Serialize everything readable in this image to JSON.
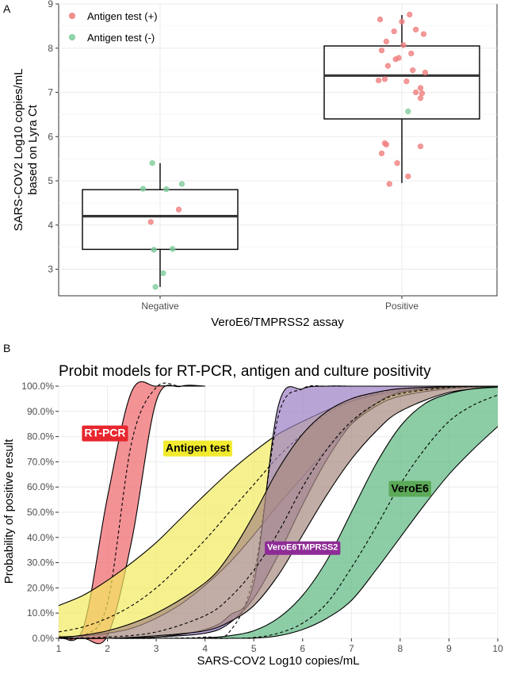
{
  "panel_labels": [
    "A",
    "B"
  ],
  "chart_data": [
    {
      "type": "box",
      "panel": "A",
      "xlabel": "VeroE6/TMPRSS2 assay",
      "ylabel_lines": [
        "SARS-COV2 Log10 copies/mL",
        "based on Lyra Ct"
      ],
      "categories": [
        "Negative",
        "Positive"
      ],
      "ylim": [
        2.4,
        9
      ],
      "yticks": [
        3,
        4,
        5,
        6,
        7,
        8,
        9
      ],
      "grid": true,
      "legend_position": "top-left",
      "legend": [
        {
          "label": "Antigen test (+)",
          "color": "#f08080"
        },
        {
          "label": "Antigen test (-)",
          "color": "#7fcc9c"
        }
      ],
      "boxes": [
        {
          "category": "Negative",
          "min": 2.6,
          "q1": 3.45,
          "median": 4.2,
          "q3": 4.8,
          "max": 5.4
        },
        {
          "category": "Positive",
          "min": 4.95,
          "q1": 6.4,
          "median": 7.38,
          "q3": 8.05,
          "max": 8.75
        }
      ],
      "points": [
        {
          "category": "Negative",
          "antigen": "-",
          "y": 5.4,
          "jitter": -0.05
        },
        {
          "category": "Negative",
          "antigen": "-",
          "y": 4.93,
          "jitter": 0.14
        },
        {
          "category": "Negative",
          "antigen": "-",
          "y": 4.82,
          "jitter": -0.11
        },
        {
          "category": "Negative",
          "antigen": "-",
          "y": 4.81,
          "jitter": 0.04
        },
        {
          "category": "Negative",
          "antigen": "+",
          "y": 4.35,
          "jitter": 0.12
        },
        {
          "category": "Negative",
          "antigen": "+",
          "y": 4.07,
          "jitter": -0.06
        },
        {
          "category": "Negative",
          "antigen": "-",
          "y": 3.46,
          "jitter": 0.08
        },
        {
          "category": "Negative",
          "antigen": "-",
          "y": 3.44,
          "jitter": -0.04
        },
        {
          "category": "Negative",
          "antigen": "-",
          "y": 2.91,
          "jitter": 0.02
        },
        {
          "category": "Negative",
          "antigen": "-",
          "y": 2.6,
          "jitter": -0.03
        },
        {
          "category": "Positive",
          "antigen": "+",
          "y": 8.76,
          "jitter": 0.05
        },
        {
          "category": "Positive",
          "antigen": "+",
          "y": 8.65,
          "jitter": -0.14
        },
        {
          "category": "Positive",
          "antigen": "+",
          "y": 8.6,
          "jitter": 0.0
        },
        {
          "category": "Positive",
          "antigen": "+",
          "y": 8.42,
          "jitter": 0.09
        },
        {
          "category": "Positive",
          "antigen": "+",
          "y": 8.38,
          "jitter": -0.05
        },
        {
          "category": "Positive",
          "antigen": "+",
          "y": 8.32,
          "jitter": 0.14
        },
        {
          "category": "Positive",
          "antigen": "+",
          "y": 8.15,
          "jitter": -0.1
        },
        {
          "category": "Positive",
          "antigen": "+",
          "y": 8.07,
          "jitter": 0.01
        },
        {
          "category": "Positive",
          "antigen": "+",
          "y": 7.95,
          "jitter": -0.13
        },
        {
          "category": "Positive",
          "antigen": "+",
          "y": 7.88,
          "jitter": 0.06
        },
        {
          "category": "Positive",
          "antigen": "+",
          "y": 7.78,
          "jitter": -0.02
        },
        {
          "category": "Positive",
          "antigen": "+",
          "y": 7.75,
          "jitter": -0.04
        },
        {
          "category": "Positive",
          "antigen": "+",
          "y": 7.6,
          "jitter": -0.09
        },
        {
          "category": "Positive",
          "antigen": "+",
          "y": 7.5,
          "jitter": 0.07
        },
        {
          "category": "Positive",
          "antigen": "+",
          "y": 7.45,
          "jitter": 0.15
        },
        {
          "category": "Positive",
          "antigen": "+",
          "y": 7.3,
          "jitter": -0.11
        },
        {
          "category": "Positive",
          "antigen": "+",
          "y": 7.25,
          "jitter": 0.03
        },
        {
          "category": "Positive",
          "antigen": "+",
          "y": 7.27,
          "jitter": -0.15
        },
        {
          "category": "Positive",
          "antigen": "+",
          "y": 7.1,
          "jitter": 0.12
        },
        {
          "category": "Positive",
          "antigen": "+",
          "y": 7.0,
          "jitter": 0.09
        },
        {
          "category": "Positive",
          "antigen": "+",
          "y": 6.98,
          "jitter": 0.13
        },
        {
          "category": "Positive",
          "antigen": "+",
          "y": 6.87,
          "jitter": 0.12
        },
        {
          "category": "Positive",
          "antigen": "-",
          "y": 6.57,
          "jitter": 0.04
        },
        {
          "category": "Positive",
          "antigen": "+",
          "y": 5.85,
          "jitter": -0.11
        },
        {
          "category": "Positive",
          "antigen": "+",
          "y": 5.82,
          "jitter": -0.1
        },
        {
          "category": "Positive",
          "antigen": "+",
          "y": 5.78,
          "jitter": 0.12
        },
        {
          "category": "Positive",
          "antigen": "+",
          "y": 5.62,
          "jitter": -0.13
        },
        {
          "category": "Positive",
          "antigen": "+",
          "y": 5.4,
          "jitter": -0.03
        },
        {
          "category": "Positive",
          "antigen": "+",
          "y": 5.1,
          "jitter": 0.04
        },
        {
          "category": "Positive",
          "antigen": "+",
          "y": 4.93,
          "jitter": -0.08
        }
      ]
    },
    {
      "type": "line",
      "panel": "B",
      "title": "Probit models for RT-PCR, antigen and culture positivity",
      "xlabel": "SARS-COV2 Log10 copies/mL",
      "ylabel": "Probability of positive result",
      "xlim": [
        1,
        10
      ],
      "ylim": [
        0,
        100
      ],
      "xticks": [
        "1",
        "2",
        "3",
        "4",
        "5",
        "6",
        "7",
        "8",
        "9",
        "10"
      ],
      "yticks": [
        "0.0%",
        "10.0%",
        "20.0%",
        "30.0%",
        "40.0%",
        "50.0%",
        "60.0%",
        "70.0%",
        "80.0%",
        "90.0%",
        "100.0%"
      ],
      "grid": true,
      "series": [
        {
          "name": "RT-PCR",
          "fill": "#ee6468",
          "label_bg": "#e8262e",
          "label_fg": "#ffffff",
          "label_at": [
            1.95,
            80
          ],
          "x": [
            1.0,
            1.5,
            2.0,
            2.5,
            3.0,
            3.5,
            4.0
          ],
          "lower": [
            0.0,
            0.0,
            1.0,
            39.0,
            94.0,
            99.9,
            100.0
          ],
          "mid": [
            0.0,
            1.0,
            14.0,
            78.0,
            99.5,
            100.0,
            100.0
          ],
          "upper": [
            1.0,
            4.0,
            56.0,
            98.0,
            100.0,
            100.0,
            100.0
          ]
        },
        {
          "name": "Antigen test",
          "fill": "#f2ea60",
          "label_bg": "#f2ea2e",
          "label_fg": "#000000",
          "label_at": [
            3.85,
            74
          ],
          "x": [
            1.0,
            1.5,
            2.0,
            2.5,
            3.0,
            3.5,
            4.0,
            4.5,
            5.0,
            5.5,
            6.0,
            6.5,
            7.0,
            7.5,
            8.0,
            9.0,
            10.0
          ],
          "lower": [
            0.5,
            1.0,
            2.0,
            4.0,
            8.0,
            13.5,
            21.0,
            30.0,
            41.0,
            53.0,
            64.0,
            75.0,
            85.0,
            92.0,
            96.0,
            99.0,
            99.8
          ],
          "mid": [
            2.5,
            4.5,
            8.0,
            13.0,
            20.0,
            29.0,
            39.0,
            50.0,
            61.0,
            72.0,
            81.0,
            89.0,
            94.0,
            97.0,
            98.5,
            99.7,
            100.0
          ],
          "upper": [
            13.0,
            17.0,
            23.0,
            30.0,
            38.0,
            47.5,
            57.0,
            66.0,
            74.0,
            81.0,
            86.0,
            90.5,
            94.0,
            96.5,
            98.0,
            99.5,
            100.0
          ]
        },
        {
          "name": "VeroE6TMPRSS2",
          "fill": "#9b7dc4",
          "label_bg": "#8e2b95",
          "label_fg": "#ffffff",
          "label_at": [
            6.0,
            35
          ],
          "x": [
            1.0,
            2.0,
            3.0,
            4.0,
            4.5,
            5.0,
            5.5,
            6.0,
            6.5,
            7.0,
            7.5,
            8.0,
            9.0,
            10.0
          ],
          "lower": [
            0.0,
            0.0,
            0.5,
            2.0,
            6.0,
            16.0,
            33.0,
            53.0,
            71.0,
            85.0,
            93.0,
            97.5,
            99.7,
            100.0
          ],
          "mid": [
            0.0,
            0.0,
            0.0,
            0.5,
            2.5,
            25.0,
            88.0,
            99.0,
            100.0,
            100.0,
            100.0,
            100.0,
            100.0,
            100.0
          ],
          "upper": [
            0.0,
            0.0,
            0.5,
            3.5,
            9.0,
            22.0,
            92.0,
            99.0,
            100.0,
            100.0,
            100.0,
            100.0,
            100.0,
            100.0
          ]
        },
        {
          "name": "",
          "fill": "#a88a80",
          "label_bg": "",
          "label_fg": "",
          "label_at": null,
          "x": [
            1.0,
            2.0,
            3.0,
            4.0,
            4.5,
            5.0,
            5.5,
            6.0,
            6.5,
            7.0,
            7.5,
            8.0,
            9.0,
            10.0
          ],
          "lower": [
            0.0,
            0.0,
            1.0,
            3.0,
            6.5,
            13.0,
            25.0,
            41.0,
            57.0,
            71.0,
            82.0,
            90.0,
            97.5,
            99.5
          ],
          "mid": [
            0.0,
            0.5,
            2.5,
            9.0,
            16.0,
            27.0,
            42.0,
            60.0,
            75.0,
            86.0,
            93.0,
            97.0,
            99.5,
            100.0
          ],
          "upper": [
            0.0,
            3.0,
            10.0,
            22.0,
            33.0,
            49.0,
            67.0,
            81.0,
            90.0,
            95.0,
            97.5,
            99.0,
            99.8,
            100.0
          ]
        },
        {
          "name": "VeroE6",
          "fill": "#5bb880",
          "label_bg": "#5caa58",
          "label_fg": "#000000",
          "label_at": [
            8.2,
            58
          ],
          "x": [
            1.0,
            2.0,
            3.0,
            4.0,
            4.5,
            5.0,
            5.5,
            6.0,
            6.5,
            7.0,
            7.5,
            8.0,
            8.5,
            9.0,
            9.5,
            10.0
          ],
          "lower": [
            0.0,
            0.0,
            0.0,
            0.0,
            0.0,
            0.1,
            1.0,
            3.5,
            8.0,
            15.0,
            27.0,
            40.0,
            53.0,
            65.0,
            75.0,
            84.0
          ],
          "mid": [
            0.0,
            0.0,
            0.0,
            0.0,
            0.0,
            0.3,
            2.0,
            6.0,
            14.0,
            28.0,
            44.0,
            61.0,
            75.0,
            86.0,
            92.5,
            96.5
          ],
          "upper": [
            0.0,
            0.0,
            0.0,
            0.2,
            1.0,
            3.0,
            8.0,
            17.0,
            31.0,
            50.0,
            69.0,
            84.0,
            93.0,
            97.0,
            99.0,
            99.7
          ]
        }
      ]
    }
  ]
}
